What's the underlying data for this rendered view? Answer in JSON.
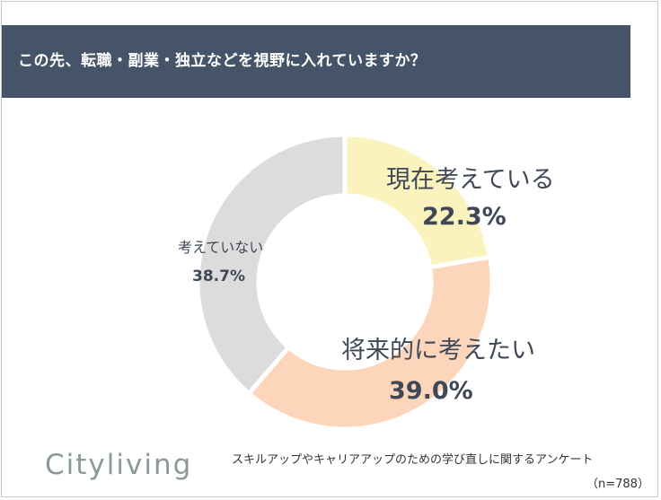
{
  "header": {
    "title": "この先、転職・副業・独立などを視野に入れていますか？"
  },
  "chart_data": {
    "type": "pie",
    "style": "donut",
    "categories": [
      "現在考えている",
      "将来的に考えたい",
      "考えていない"
    ],
    "values": [
      22.3,
      39.0,
      38.7
    ],
    "value_labels": [
      "22.3%",
      "39.0%",
      "38.7%"
    ],
    "colors": [
      "#faf3be",
      "#fcd5bb",
      "#dcdcdc"
    ],
    "start_angle": "12 o'clock",
    "direction": "clockwise"
  },
  "footer": {
    "logo": "Cityliving",
    "note": "スキルアップやキャリアアップのための学び直しに関するアンケート",
    "sample_size": "（n=788）"
  }
}
